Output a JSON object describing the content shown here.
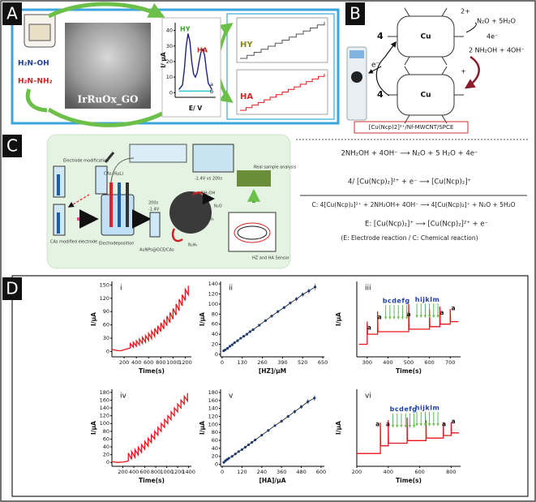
{
  "panel_labels": [
    "A",
    "B",
    "C",
    "D"
  ],
  "panel_a": {
    "sample": "IrRuOx_GO",
    "molecules": [
      "H₂N–OH",
      "H₂N–NH₂"
    ],
    "insets": [
      "HY",
      "HA"
    ],
    "cv": {
      "type": "line",
      "ylabel": "I/ μA",
      "xlabel": "E/ V",
      "peak_labels": [
        "HY",
        "HA"
      ],
      "curve_labels": [
        "a",
        "b"
      ],
      "xlim": [
        -0.2,
        0.9
      ],
      "ylim": [
        -3,
        45
      ],
      "yticks": [
        0,
        10,
        20,
        30,
        40
      ],
      "x": [
        -0.1,
        0,
        0.05,
        0.1,
        0.15,
        0.2,
        0.25,
        0.3,
        0.35,
        0.4,
        0.45,
        0.5,
        0.55,
        0.6,
        0.65,
        0.7,
        0.8
      ],
      "series": [
        {
          "color": "#1a237e",
          "values": [
            2,
            5,
            15,
            30,
            38,
            33,
            20,
            12,
            10,
            13,
            20,
            26,
            28,
            24,
            14,
            6,
            2
          ]
        },
        {
          "color": "#26c6da",
          "values": [
            1,
            1,
            1,
            1,
            1,
            1,
            1,
            1,
            1,
            1,
            1,
            1,
            1,
            1,
            1,
            1,
            1
          ]
        }
      ]
    }
  },
  "panel_b": {
    "charge_top": "2+",
    "charge_bottom": "+",
    "metal": [
      "Cu",
      "Cu"
    ],
    "coefficients": [
      "4",
      "4"
    ],
    "products": "N₂O + 5H₂O",
    "electrons": "4e⁻",
    "reactants": "2 NH₂OH + 4OH⁻",
    "electron": "e⁻",
    "electrode": "[Cu(Ncp)2]²⁺/Nf-MWCNT/SPCE"
  },
  "panel_c": {
    "scheme": [
      "Electrode modification",
      "CAs (6μL)",
      "CAs modified electrode",
      "Electrodeposition",
      "200s",
      "-1.4V",
      "AuNPs@GCE/CAs",
      "Real sample analysis",
      "NH₂OH",
      "N₂O",
      "N₂",
      "N₂H₄",
      "HZ and HA Sensor",
      "-1.4V vs 200s"
    ],
    "equations": [
      "2NH₂OH + 4OH⁻ ⟶ N₂O + 5 H₂O + 4e⁻",
      "4/ [Cu(Ncp)₂]²⁺ + e⁻ ⟶ [Cu(Ncp)₂]⁺",
      "C:  4[Cu(Ncp)₂]²⁺ + 2NH₂OH+ 4OH⁻ ⟶ 4[Cu(Ncp)₂]⁺ + N₂O + 5H₂O",
      "E:        [Cu(Ncp)₂]⁺ ⟶ [Cu(Ncp)₂]²⁺ + e⁻"
    ],
    "note": "(E: Electrode reaction / C: Chemical reaction)"
  },
  "chart_data": [
    {
      "type": "line",
      "label": "i",
      "ylabel": "I/μA",
      "xlabel": "Time(s)",
      "xlim": [
        0,
        1300
      ],
      "xticks": [
        200,
        400,
        600,
        800,
        1000,
        1200
      ],
      "ylim": [
        -12,
        158
      ],
      "yticks": [
        0,
        30,
        60,
        90,
        120,
        150
      ],
      "x": [
        0,
        50,
        100,
        150,
        200,
        250,
        300,
        300,
        350,
        350,
        400,
        400,
        450,
        450,
        500,
        500,
        550,
        550,
        600,
        600,
        650,
        650,
        700,
        700,
        750,
        750,
        800,
        800,
        850,
        850,
        900,
        900,
        950,
        950,
        1000,
        1000,
        1050,
        1050,
        1100,
        1100,
        1150,
        1150,
        1200,
        1200,
        1250,
        1250
      ],
      "series": [
        {
          "color": "#e8161b",
          "values": [
            5,
            3,
            2,
            2,
            4,
            6,
            8,
            18,
            10,
            21,
            12,
            24,
            15,
            28,
            18,
            32,
            21,
            36,
            25,
            41,
            29,
            46,
            34,
            52,
            39,
            58,
            45,
            65,
            51,
            72,
            58,
            80,
            65,
            88,
            73,
            97,
            82,
            107,
            92,
            118,
            103,
            128,
            115,
            140,
            128,
            148
          ]
        }
      ]
    },
    {
      "type": "scatter",
      "label": "ii",
      "ylabel": "I/μA",
      "xlabel": "[HZ]/μM",
      "xlim": [
        -10,
        660
      ],
      "xticks": [
        0,
        130,
        260,
        390,
        520,
        650
      ],
      "ylim": [
        -5,
        145
      ],
      "yticks": [
        0,
        20,
        40,
        60,
        80,
        100,
        120,
        140
      ],
      "x": [
        10,
        20,
        35,
        50,
        65,
        80,
        100,
        120,
        140,
        160,
        180,
        200,
        240,
        280,
        320,
        360,
        400,
        440,
        480,
        520,
        560,
        600
      ],
      "series": [
        {
          "color": "#1f3a6e",
          "values": [
            7,
            9,
            12,
            16,
            19,
            23,
            27,
            32,
            36,
            40,
            45,
            49,
            58,
            67,
            76,
            85,
            93,
            102,
            110,
            119,
            126,
            134
          ],
          "errors": [
            1,
            1,
            1,
            1,
            1,
            1,
            1,
            1,
            2,
            2,
            2,
            2,
            2,
            2,
            3,
            3,
            3,
            3,
            4,
            4,
            5,
            6
          ]
        }
      ]
    },
    {
      "type": "line",
      "label": "iii",
      "ylabel": "I/μA",
      "xlabel": "Time(s)",
      "xlim": [
        250,
        750
      ],
      "xticks": [
        300,
        400,
        500,
        600,
        700
      ],
      "ylim": [
        -5,
        25
      ],
      "annotations": [
        "a",
        "a",
        "bcdefg",
        "a",
        "hijklm",
        "a",
        "a"
      ],
      "x": [
        260,
        300,
        300,
        302,
        350,
        350,
        352,
        500,
        500,
        502,
        600,
        600,
        602,
        650,
        650,
        652,
        700,
        700,
        702,
        740
      ],
      "series": [
        {
          "color": "#e8161b",
          "values": [
            0,
            0,
            9,
            4,
            4,
            13,
            5,
            5,
            16,
            6,
            6,
            14,
            7,
            7,
            15,
            8,
            8,
            14,
            9,
            9
          ]
        }
      ]
    },
    {
      "type": "line",
      "label": "iv",
      "ylabel": "I/μA",
      "xlabel": "Time(s)",
      "xlim": [
        0,
        1450
      ],
      "xticks": [
        200,
        400,
        600,
        800,
        1000,
        1200,
        1400
      ],
      "ylim": [
        -10,
        188
      ],
      "yticks": [
        0,
        20,
        40,
        60,
        80,
        100,
        120,
        140,
        160,
        180
      ],
      "x": [
        0,
        100,
        200,
        250,
        300,
        300,
        360,
        360,
        420,
        420,
        480,
        480,
        540,
        540,
        600,
        600,
        660,
        660,
        720,
        720,
        780,
        780,
        840,
        840,
        900,
        900,
        960,
        960,
        1020,
        1020,
        1080,
        1080,
        1140,
        1140,
        1200,
        1200,
        1260,
        1260,
        1320,
        1320,
        1380,
        1380
      ],
      "series": [
        {
          "color": "#e8161b",
          "values": [
            2,
            0,
            1,
            2,
            4,
            24,
            8,
            28,
            13,
            33,
            19,
            39,
            26,
            46,
            34,
            54,
            42,
            62,
            51,
            71,
            60,
            80,
            70,
            90,
            80,
            100,
            90,
            110,
            100,
            120,
            110,
            130,
            120,
            140,
            130,
            150,
            140,
            160,
            150,
            170,
            158,
            178
          ]
        }
      ]
    },
    {
      "type": "scatter",
      "label": "v",
      "ylabel": "I/μA",
      "xlabel": "[HA]/μA",
      "xlim": [
        -10,
        620
      ],
      "xticks": [
        0,
        120,
        240,
        360,
        480,
        600
      ],
      "ylim": [
        -5,
        188
      ],
      "yticks": [
        0,
        20,
        40,
        60,
        80,
        100,
        120,
        140,
        160,
        180
      ],
      "x": [
        10,
        20,
        30,
        40,
        60,
        80,
        100,
        120,
        140,
        160,
        180,
        200,
        240,
        280,
        320,
        360,
        400,
        440,
        480,
        520,
        560
      ],
      "series": [
        {
          "color": "#1f3a6e",
          "values": [
            5,
            9,
            12,
            15,
            20,
            26,
            32,
            37,
            43,
            49,
            55,
            61,
            73,
            85,
            97,
            108,
            120,
            132,
            144,
            157,
            166
          ],
          "errors": [
            1,
            1,
            1,
            1,
            1,
            1,
            2,
            2,
            2,
            2,
            2,
            2,
            3,
            3,
            3,
            4,
            4,
            5,
            5,
            6,
            7
          ]
        }
      ]
    },
    {
      "type": "line",
      "label": "vi",
      "ylabel": "I/μA",
      "xlabel": "Time(s)",
      "xlim": [
        200,
        860
      ],
      "xticks": [
        200,
        400,
        600,
        800
      ],
      "ylim": [
        -5,
        25
      ],
      "annotations": [
        "a",
        "a",
        "bcdefg",
        "hijklm",
        "a",
        "a"
      ],
      "x": [
        200,
        350,
        350,
        352,
        400,
        400,
        402,
        520,
        520,
        522,
        640,
        640,
        642,
        750,
        750,
        752,
        800,
        800,
        802,
        850
      ],
      "series": [
        {
          "color": "#e8161b",
          "values": [
            0,
            0,
            12,
            3,
            3,
            13,
            4,
            4,
            14,
            5,
            5,
            13,
            6,
            6,
            12,
            7,
            7,
            12,
            8,
            8
          ]
        }
      ]
    }
  ]
}
